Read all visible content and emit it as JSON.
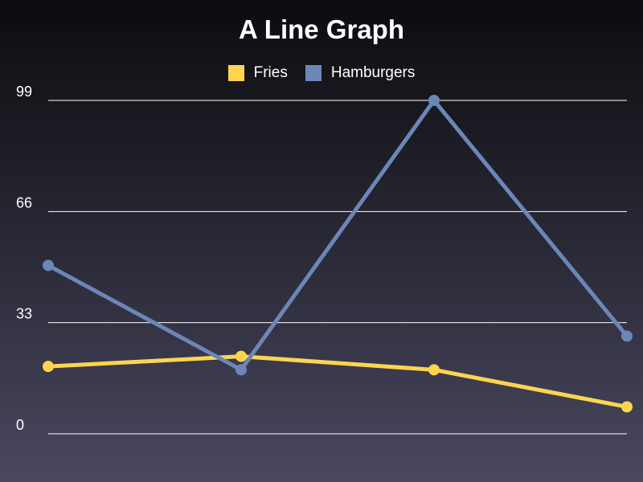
{
  "chart_data": {
    "type": "line",
    "title": "A Line Graph",
    "xlabel": "",
    "ylabel": "",
    "categories": [
      "",
      "",
      "",
      ""
    ],
    "series": [
      {
        "name": "Fries",
        "values": [
          20,
          23,
          19,
          8
        ],
        "color": "#ffd54f"
      },
      {
        "name": "Hamburgers",
        "values": [
          50,
          19,
          99,
          29
        ],
        "color": "#6b87b8"
      }
    ],
    "yticks": [
      0,
      33,
      66,
      99
    ],
    "ylim": [
      0,
      99
    ],
    "grid": true,
    "legend_position": "top-center",
    "gridline_color": "#ffffff"
  }
}
